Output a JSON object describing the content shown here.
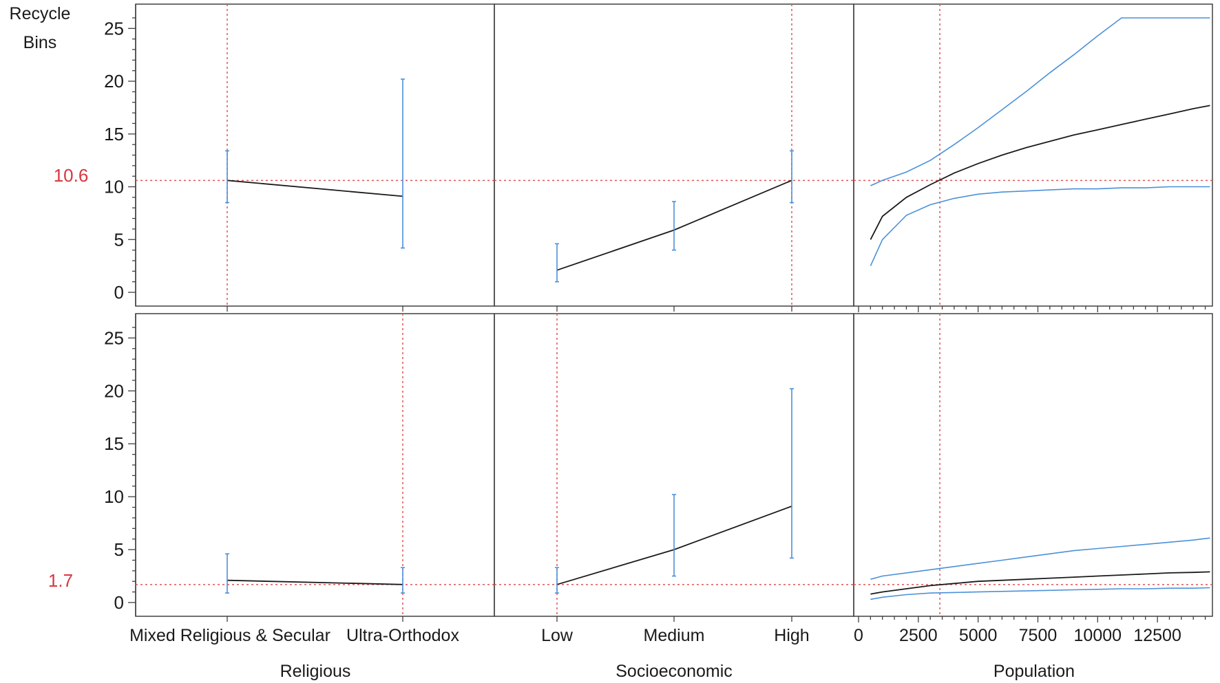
{
  "chart_data": {
    "type": "line",
    "response": {
      "label": "Recycle",
      "label_line2": "Bins"
    },
    "ylim": [
      0,
      26
    ],
    "yticks": [
      0,
      5,
      10,
      15,
      20,
      25
    ],
    "colors": {
      "prediction": "#1a1a1a",
      "interval": "#4a90d9",
      "reference": "#e05252"
    },
    "factors": [
      {
        "name": "Religious",
        "kind": "categorical",
        "categories": [
          "Mixed Religious & Secular",
          "Ultra-Orthodox"
        ]
      },
      {
        "name": "Socioeconomic",
        "kind": "categorical",
        "categories": [
          "Low",
          "Medium",
          "High"
        ]
      },
      {
        "name": "Population",
        "kind": "continuous",
        "xlim": [
          0,
          14800
        ],
        "xticks": [
          0,
          2500,
          5000,
          7500,
          10000,
          12500
        ]
      }
    ],
    "rows": [
      {
        "current_value_label": "10.6",
        "current_value": 10.6,
        "panels": [
          {
            "factor": "Religious",
            "current_index": 0,
            "pred": [
              10.6,
              9.1
            ],
            "lower": [
              8.5,
              4.2
            ],
            "upper": [
              13.4,
              20.2
            ]
          },
          {
            "factor": "Socioeconomic",
            "current_index": 2,
            "pred": [
              2.1,
              5.9,
              10.6
            ],
            "lower": [
              1.0,
              4.0,
              8.5
            ],
            "upper": [
              4.6,
              8.6,
              13.4
            ]
          },
          {
            "factor": "Population",
            "current_x": 3400,
            "x": [
              500,
              1000,
              2000,
              3000,
              4000,
              5000,
              6000,
              7000,
              8000,
              9000,
              10000,
              11000,
              12000,
              13000,
              14000,
              14700
            ],
            "pred": [
              5.0,
              7.2,
              9.0,
              10.2,
              11.3,
              12.2,
              13.0,
              13.7,
              14.3,
              14.9,
              15.4,
              15.9,
              16.4,
              16.9,
              17.4,
              17.7
            ],
            "lower": [
              2.5,
              5.0,
              7.3,
              8.3,
              8.9,
              9.3,
              9.5,
              9.6,
              9.7,
              9.8,
              9.8,
              9.9,
              9.9,
              10.0,
              10.0,
              10.0
            ],
            "upper": [
              10.1,
              10.6,
              11.4,
              12.5,
              14.0,
              15.6,
              17.3,
              19.0,
              20.8,
              22.5,
              24.3,
              26.0,
              26.0,
              26.0,
              26.0,
              26.0
            ]
          }
        ]
      },
      {
        "current_value_label": "1.7",
        "current_value": 1.7,
        "panels": [
          {
            "factor": "Religious",
            "current_index": 1,
            "pred": [
              2.1,
              1.7
            ],
            "lower": [
              0.9,
              0.9
            ],
            "upper": [
              4.6,
              3.3
            ]
          },
          {
            "factor": "Socioeconomic",
            "current_index": 0,
            "pred": [
              1.7,
              5.0,
              9.1
            ],
            "lower": [
              0.9,
              2.5,
              4.2
            ],
            "upper": [
              3.3,
              10.2,
              20.2
            ]
          },
          {
            "factor": "Population",
            "current_x": 3400,
            "x": [
              500,
              1000,
              2000,
              3000,
              4000,
              5000,
              6000,
              7000,
              8000,
              9000,
              10000,
              11000,
              12000,
              13000,
              14000,
              14700
            ],
            "pred": [
              0.8,
              1.0,
              1.3,
              1.6,
              1.8,
              2.0,
              2.1,
              2.2,
              2.3,
              2.4,
              2.5,
              2.6,
              2.7,
              2.8,
              2.85,
              2.9
            ],
            "lower": [
              0.3,
              0.5,
              0.75,
              0.9,
              0.95,
              1.0,
              1.05,
              1.1,
              1.15,
              1.2,
              1.25,
              1.3,
              1.3,
              1.35,
              1.35,
              1.4
            ],
            "upper": [
              2.2,
              2.5,
              2.8,
              3.1,
              3.4,
              3.7,
              4.0,
              4.3,
              4.6,
              4.9,
              5.1,
              5.3,
              5.5,
              5.7,
              5.9,
              6.1
            ]
          }
        ]
      }
    ]
  }
}
